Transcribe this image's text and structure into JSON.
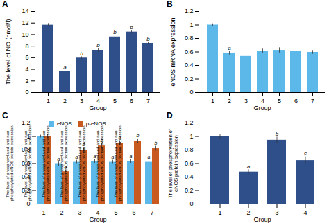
{
  "chart_data": [
    {
      "type": "bar",
      "title": "A",
      "xlabel": "Group",
      "ylabel": "The level of NO (nmol/l)",
      "categories": [
        "1",
        "2",
        "3",
        "4",
        "5",
        "6",
        "7"
      ],
      "values": [
        11.65,
        3.6,
        5.95,
        7.3,
        9.6,
        10.45,
        8.5
      ],
      "errors": [
        0.28,
        0.18,
        0.22,
        0.28,
        0.28,
        0.28,
        0.22
      ],
      "annotations": [
        null,
        "a",
        "b",
        "b",
        "b",
        "b",
        "b"
      ],
      "color": "#2E4F8A",
      "ylim": [
        0,
        14
      ],
      "yticks": [
        0,
        2,
        4,
        6,
        8,
        10,
        12,
        14
      ],
      "grid": false
    },
    {
      "type": "bar",
      "title": "B",
      "xlabel": "Group",
      "ylabel": "eNOS mRNA expression",
      "categories": [
        "1",
        "2",
        "3",
        "4",
        "5",
        "6",
        "7"
      ],
      "values": [
        1.0,
        0.585,
        0.535,
        0.615,
        0.625,
        0.605,
        0.595
      ],
      "errors": [
        0.018,
        0.028,
        0.018,
        0.028,
        0.038,
        0.028,
        0.028
      ],
      "annotations": [
        null,
        "a",
        null,
        null,
        null,
        null,
        null
      ],
      "color": "#5BB8E8",
      "ylim": [
        0,
        1.2
      ],
      "yticks": [
        0,
        0.2,
        0.4,
        0.6,
        0.8,
        1,
        1.2
      ],
      "grid": false
    },
    {
      "type": "bar",
      "title": "C",
      "xlabel": "Group",
      "ylabel": "The level of phosphorylated and non-\nphosphorylated eNOS protein expression",
      "categories": [
        "1",
        "2",
        "3",
        "4",
        "5",
        "6",
        "7"
      ],
      "series": [
        {
          "name": "eNOS",
          "color": "#5BB8E8",
          "values": [
            1.0,
            0.59,
            0.62,
            0.63,
            0.62,
            0.63,
            0.62
          ],
          "errors": [
            0.02,
            0.035,
            0.03,
            0.03,
            0.03,
            0.03,
            0.03
          ],
          "annotations": [
            null,
            "a",
            "a",
            "a",
            "a",
            "a",
            "a"
          ]
        },
        {
          "name": "p-eNOS",
          "color": "#C85A20",
          "values": [
            1.0,
            0.48,
            0.8,
            0.86,
            0.9,
            0.93,
            0.82
          ],
          "errors": [
            0.025,
            0.025,
            0.035,
            0.035,
            0.035,
            0.035,
            0.035
          ],
          "annotations": [
            null,
            "a",
            "b",
            "b",
            "b",
            "b",
            "b"
          ]
        }
      ],
      "legend": "top",
      "ylim": [
        0,
        1.2
      ],
      "yticks": [
        0,
        0.2,
        0.4,
        0.6,
        0.8,
        1,
        1.2
      ],
      "grid": false
    },
    {
      "type": "bar",
      "title": "D",
      "xlabel": "Group",
      "ylabel": "The level of phosphorylation of\neNOS protein expression",
      "categories": [
        "1",
        "2",
        "3",
        "4"
      ],
      "values": [
        1.0,
        0.475,
        0.945,
        0.645
      ],
      "errors": [
        0.035,
        0.035,
        0.045,
        0.055
      ],
      "annotations": [
        null,
        "a",
        "b",
        "c"
      ],
      "color": "#2E4F8A",
      "ylim": [
        0,
        1.2
      ],
      "yticks": [
        0,
        0.2,
        0.4,
        0.6,
        0.8,
        1,
        1.2
      ],
      "grid": false
    }
  ]
}
